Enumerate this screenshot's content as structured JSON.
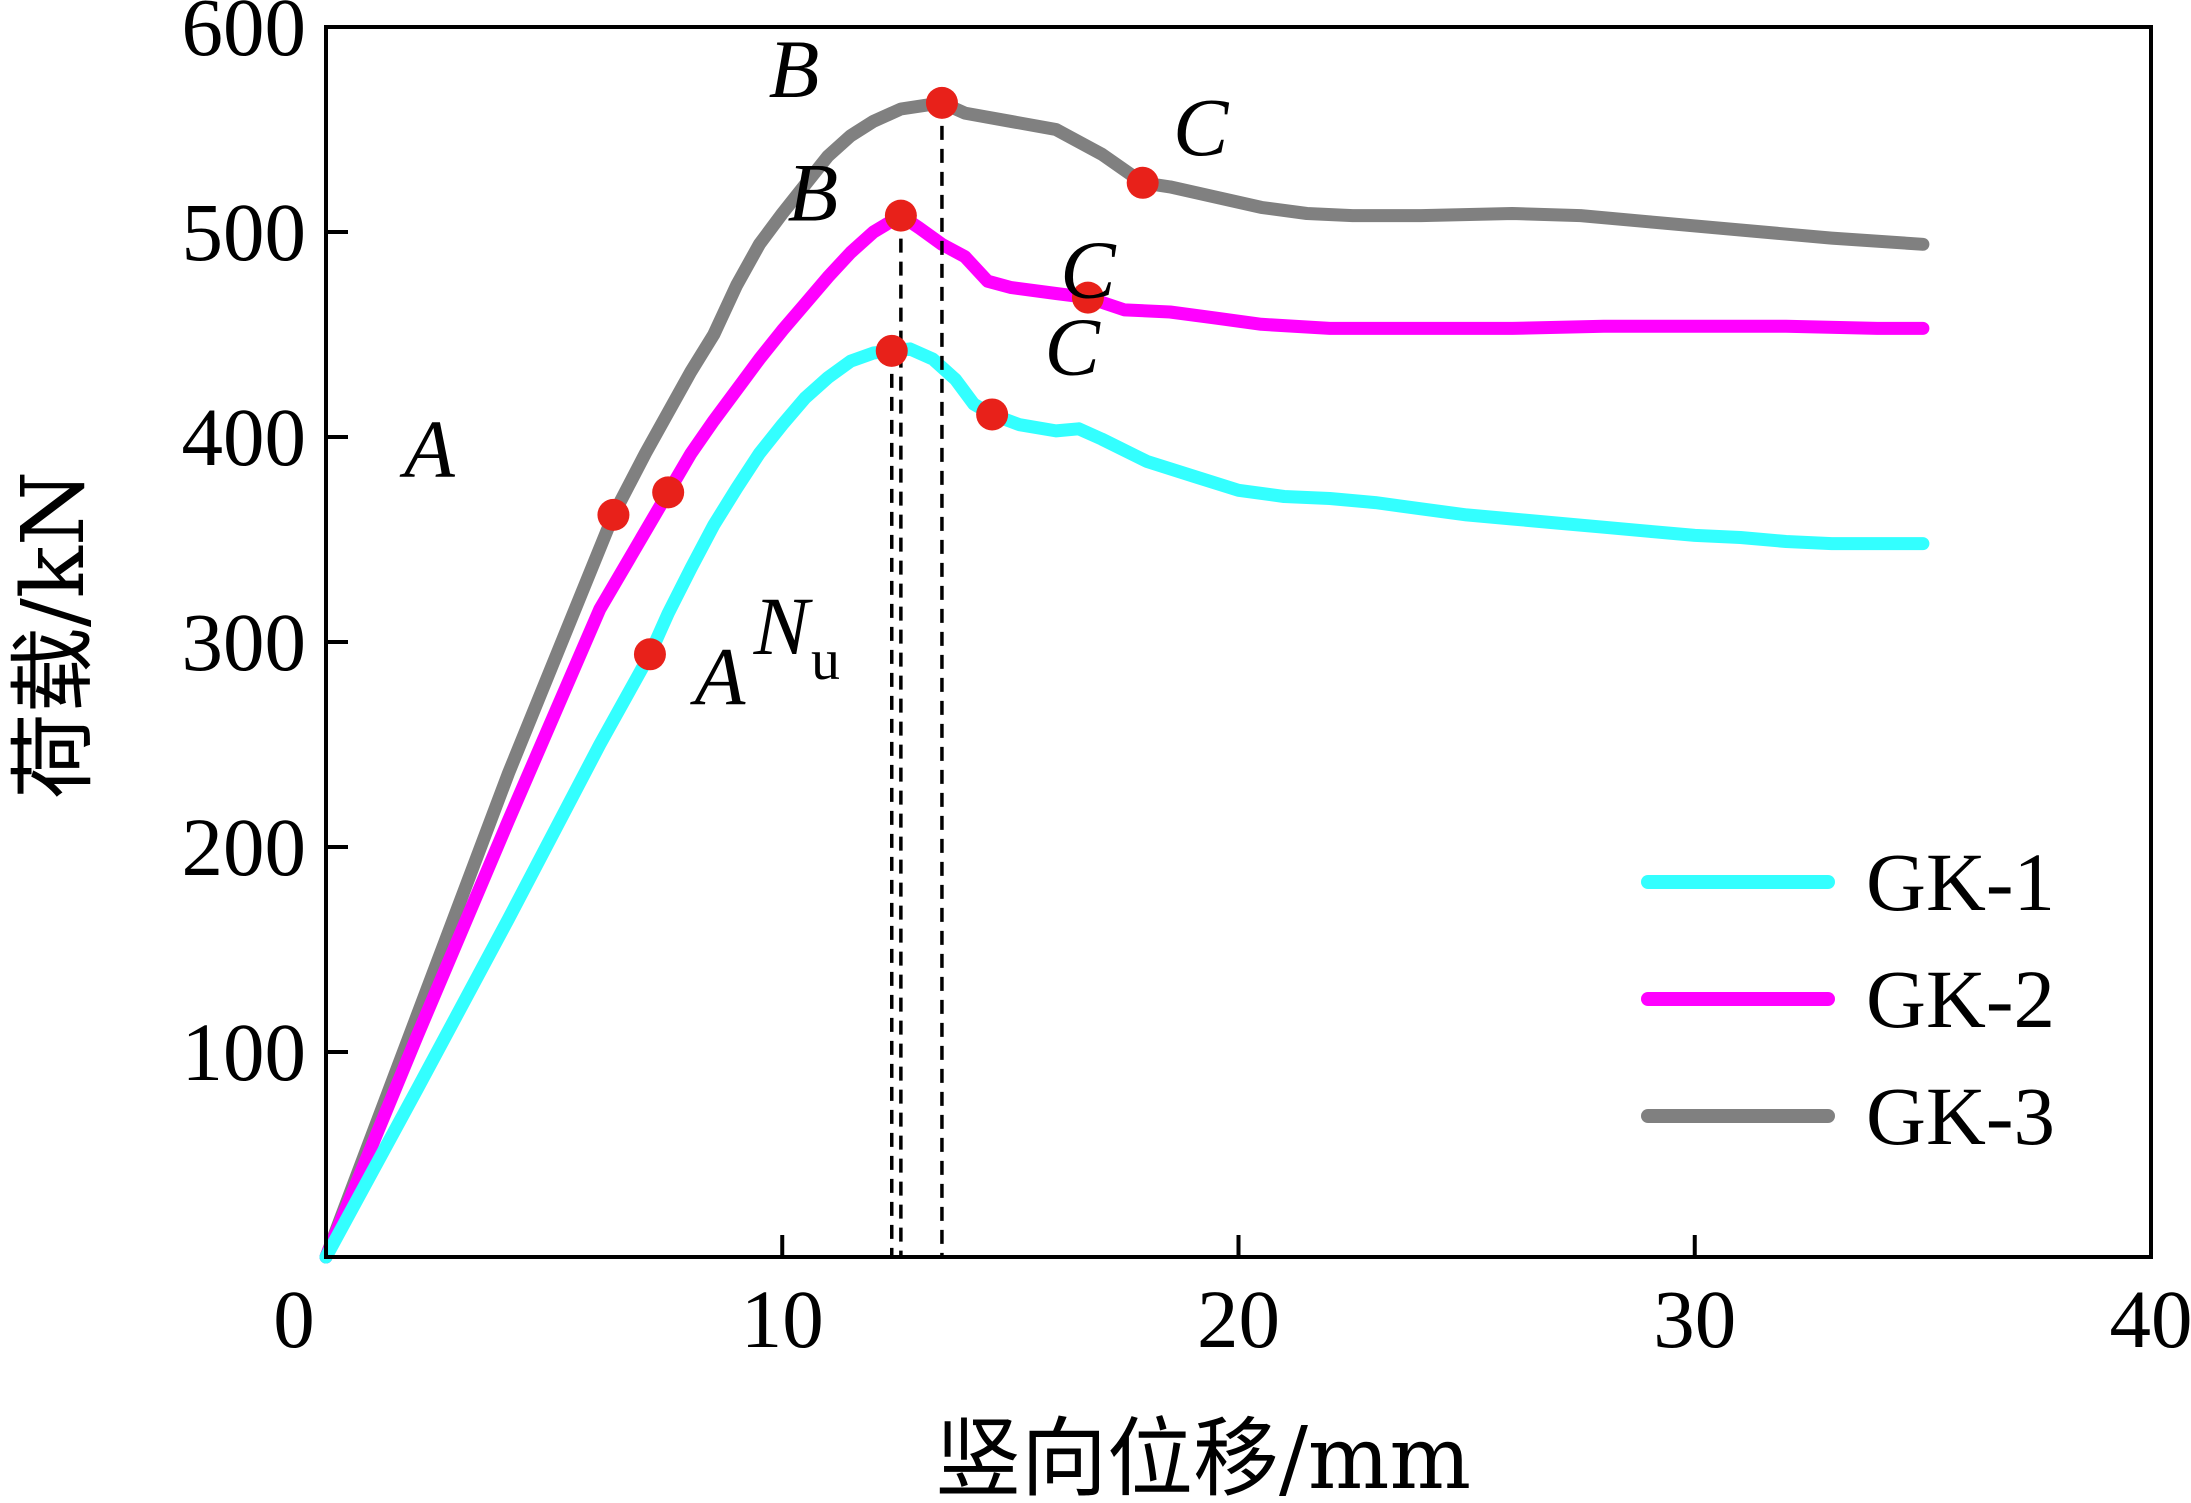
{
  "chart_data": {
    "type": "line",
    "title": "",
    "xlabel": "竖向位移/mm",
    "ylabel": "荷载/kN",
    "xlim": [
      0,
      40
    ],
    "ylim": [
      0,
      600
    ],
    "xticks": [
      0,
      10,
      20,
      30,
      40
    ],
    "xtick_labels": [
      "0",
      "10",
      "20",
      "30",
      "40"
    ],
    "yticks": [
      100,
      200,
      300,
      400,
      500,
      600
    ],
    "ytick_labels": [
      "100",
      "200",
      "300",
      "400",
      "500",
      "600"
    ],
    "grid": false,
    "legend_position": "bottom-right",
    "series": [
      {
        "name": "GK-1",
        "color": "#33ffff",
        "x": [
          0,
          2,
          4,
          6,
          7.1,
          7.5,
          8,
          8.5,
          9,
          9.5,
          10,
          10.5,
          11,
          11.5,
          12,
          12.4,
          12.8,
          13.3,
          13.8,
          14.2,
          14.6,
          15.2,
          16,
          16.5,
          17,
          18,
          19,
          20,
          21,
          22,
          23,
          24,
          25,
          26,
          27,
          28,
          29,
          30,
          31,
          32,
          33,
          34,
          35
        ],
        "y": [
          0,
          82,
          165,
          250,
          294,
          314,
          336,
          357,
          375,
          392,
          406,
          419,
          429,
          437,
          441,
          442,
          443,
          438,
          428,
          416,
          411,
          406,
          403,
          404,
          399,
          388,
          381,
          374,
          371,
          370,
          368,
          365,
          362,
          360,
          358,
          356,
          354,
          352,
          351,
          349,
          348,
          348,
          348
        ]
      },
      {
        "name": "GK-2",
        "color": "#ff00ff",
        "x": [
          0,
          2,
          4,
          6,
          7.5,
          8,
          8.5,
          9,
          9.5,
          10,
          10.5,
          11,
          11.5,
          12,
          12.6,
          13,
          13.5,
          14,
          14.5,
          15,
          16,
          16.7,
          17.5,
          18.5,
          19.5,
          20.5,
          22,
          24,
          26,
          28,
          30,
          32,
          34,
          35
        ],
        "y": [
          0,
          108,
          213,
          316,
          373,
          392,
          408,
          423,
          438,
          452,
          465,
          478,
          490,
          500,
          508,
          502,
          494,
          488,
          476,
          473,
          470,
          468,
          462,
          461,
          458,
          455,
          453,
          453,
          453,
          454,
          454,
          454,
          453,
          453
        ]
      },
      {
        "name": "GK-3",
        "color": "#808080",
        "x": [
          0,
          2,
          4,
          6.3,
          7,
          7.5,
          8,
          8.5,
          9,
          9.5,
          10,
          10.5,
          11,
          11.5,
          12,
          12.6,
          13.5,
          14,
          15,
          16,
          17,
          17.9,
          18.5,
          19.5,
          20.5,
          21.5,
          22.5,
          24,
          26,
          27.5,
          29,
          31,
          33,
          35
        ],
        "y": [
          0,
          118,
          236,
          362,
          392,
          412,
          432,
          450,
          474,
          494,
          509,
          523,
          537,
          547,
          554,
          560,
          563,
          558,
          554,
          550,
          538,
          524,
          522,
          517,
          512,
          509,
          508,
          508,
          509,
          508,
          505,
          501,
          497,
          494
        ]
      }
    ],
    "markers": [
      {
        "series": "GK-1",
        "x": 7.1,
        "y": 294,
        "label": "A"
      },
      {
        "series": "GK-1",
        "x": 12.4,
        "y": 442,
        "label": ""
      },
      {
        "series": "GK-1",
        "x": 14.6,
        "y": 411,
        "label": "C"
      },
      {
        "series": "GK-2",
        "x": 7.5,
        "y": 373,
        "label": ""
      },
      {
        "series": "GK-2",
        "x": 12.6,
        "y": 508,
        "label": "B"
      },
      {
        "series": "GK-2",
        "x": 16.7,
        "y": 468,
        "label": "C"
      },
      {
        "series": "GK-3",
        "x": 6.3,
        "y": 362,
        "label": "A"
      },
      {
        "series": "GK-3",
        "x": 13.5,
        "y": 563,
        "label": "B"
      },
      {
        "series": "GK-3",
        "x": 17.9,
        "y": 524,
        "label": "C"
      }
    ],
    "marker_color": "#e8211a",
    "vlines": [
      {
        "x": 12.4,
        "y": 442
      },
      {
        "x": 12.6,
        "y": 508
      },
      {
        "x": 13.5,
        "y": 563
      }
    ],
    "annotations": [
      {
        "text": "N",
        "sub": "u",
        "x": 12.4,
        "y": 300
      }
    ]
  }
}
